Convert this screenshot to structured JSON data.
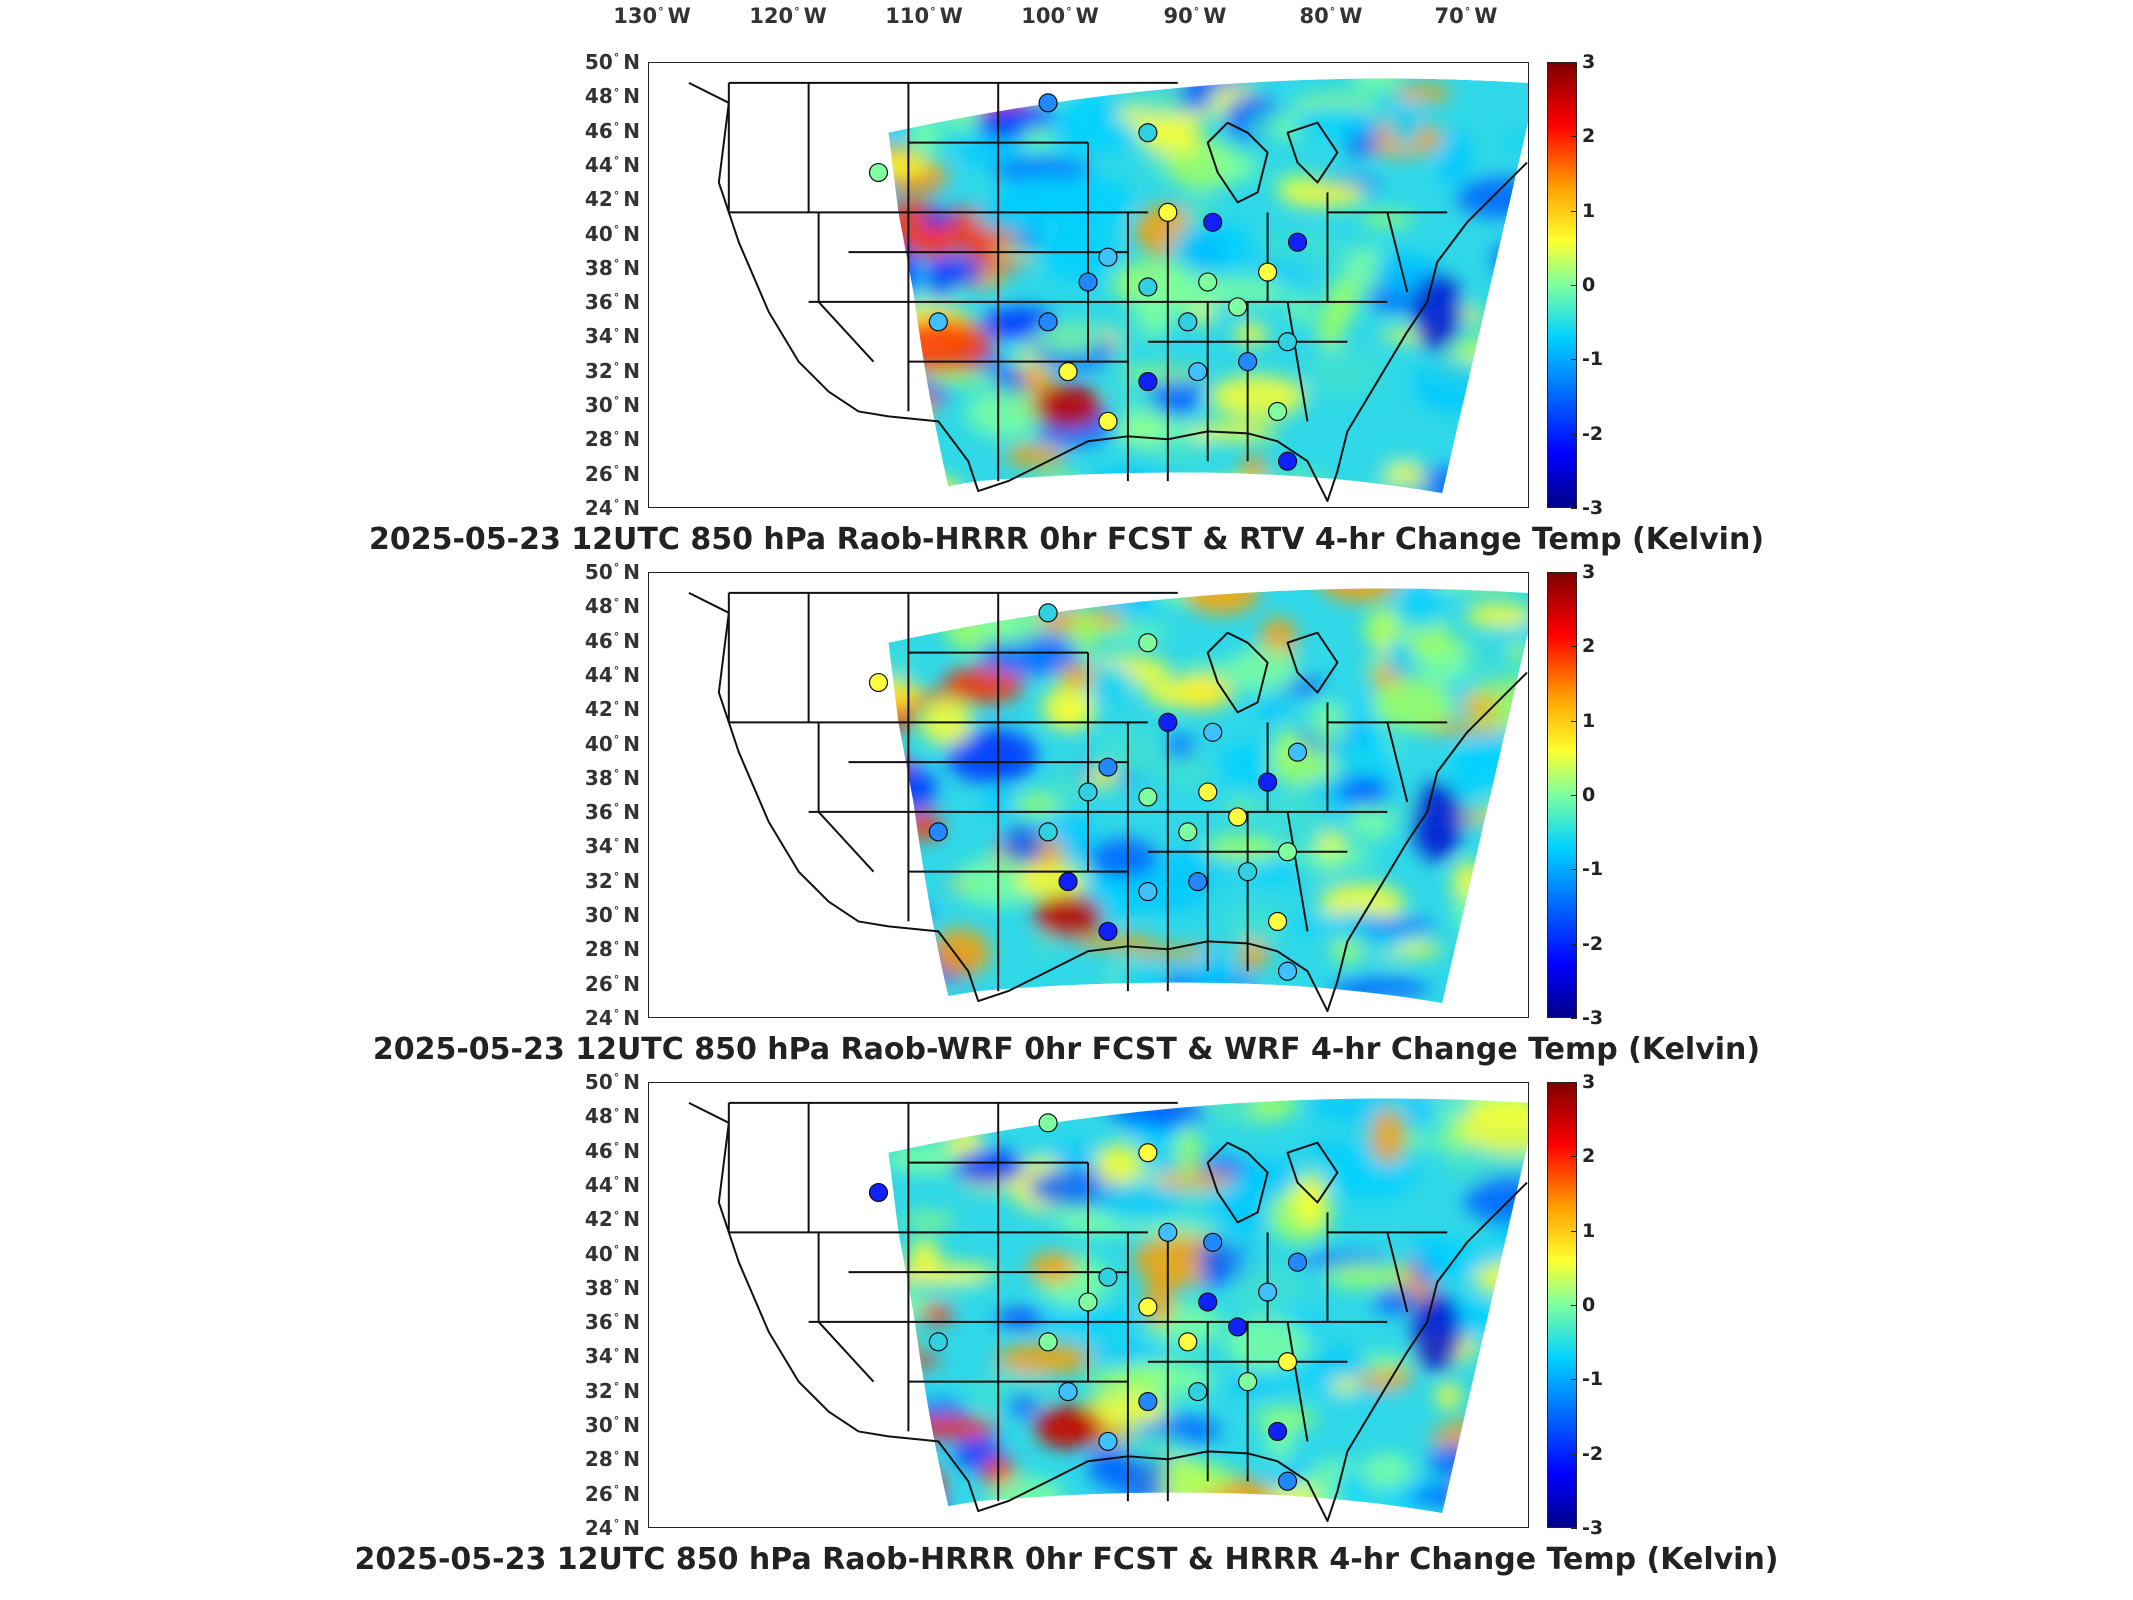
{
  "longitude_labels": [
    {
      "value": "130",
      "dir": "W"
    },
    {
      "value": "120",
      "dir": "W"
    },
    {
      "value": "110",
      "dir": "W"
    },
    {
      "value": "100",
      "dir": "W"
    },
    {
      "value": "90",
      "dir": "W"
    },
    {
      "value": "80",
      "dir": "W"
    },
    {
      "value": "70",
      "dir": "W"
    }
  ],
  "latitude_labels": [
    "50",
    "48",
    "46",
    "44",
    "42",
    "40",
    "38",
    "36",
    "34",
    "32",
    "30",
    "28",
    "26",
    "24"
  ],
  "latitude_dir": "N",
  "colorbar_ticks": [
    "3",
    "2",
    "1",
    "0",
    "-1",
    "-2",
    "-3"
  ],
  "colorbar_colors": [
    "#800000",
    "#ff0000",
    "#ffa000",
    "#ffff30",
    "#7cffa0",
    "#00d0ff",
    "#0060ff",
    "#0000ff",
    "#00008a"
  ],
  "panels": [
    {
      "title": "2025-05-23 12UTC 850 hPa Raob-HRRR 0hr FCST & RTV 4-hr Change Temp (Kelvin)"
    },
    {
      "title": "2025-05-23 12UTC 850 hPa Raob-WRF 0hr FCST & WRF 4-hr Change Temp (Kelvin)"
    },
    {
      "title": "2025-05-23 12UTC 850 hPa Raob-HRRR 0hr FCST & HRRR 4-hr Change Temp (Kelvin)"
    }
  ]
}
